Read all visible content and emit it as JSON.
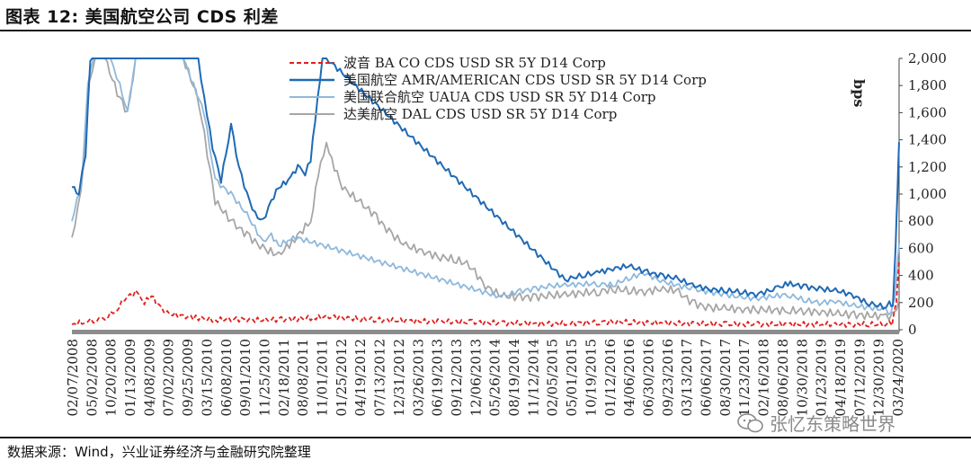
{
  "header": {
    "title": "图表 12:  美国航空公司 CDS 利差"
  },
  "footer": {
    "source": "数据来源：Wind，兴业证券经济与金融研究院整理"
  },
  "watermark": {
    "text": "张忆东策略世界"
  },
  "chart_data": {
    "type": "line",
    "title": "图表 12:  美国航空公司 CDS 利差",
    "ylabel": "bps",
    "ylim": [
      0,
      2000
    ],
    "yticks": [
      0,
      200,
      400,
      600,
      800,
      1000,
      1200,
      1400,
      1600,
      1800,
      2000
    ],
    "ytick_labels": [
      "0",
      "200",
      "400",
      "600",
      "800",
      "1,000",
      "1,200",
      "1,400",
      "1,600",
      "1,800",
      "2,000"
    ],
    "y_axis_position": "right",
    "legend_position": "top-center",
    "x_tick_labels": [
      "02/07/2008",
      "05/02/2008",
      "10/20/2008",
      "01/13/2009",
      "04/08/2009",
      "07/02/2009",
      "09/25/2009",
      "03/15/2010",
      "06/08/2010",
      "09/01/2010",
      "11/25/2010",
      "02/18/2011",
      "08/08/2011",
      "11/01/2011",
      "01/25/2012",
      "04/19/2012",
      "07/13/2012",
      "12/31/2012",
      "03/26/2013",
      "06/19/2013",
      "09/12/2013",
      "12/06/2013",
      "05/26/2014",
      "08/19/2014",
      "11/12/2014",
      "02/05/2015",
      "05/01/2015",
      "10/19/2015",
      "01/12/2016",
      "04/06/2016",
      "06/30/2016",
      "09/23/2016",
      "03/13/2017",
      "06/06/2017",
      "08/30/2017",
      "11/23/2017",
      "02/16/2018",
      "08/06/2018",
      "10/30/2018",
      "01/23/2019",
      "04/18/2019",
      "07/12/2019",
      "12/30/2019",
      "03/24/2020"
    ],
    "series": [
      {
        "name": "波音 BA CO CDS USD SR 5Y D14 Corp",
        "color": "#e0201e",
        "dash": "dashed",
        "x": [
          "2008-02-07",
          "2008-04-01",
          "2008-06-01",
          "2008-08-01",
          "2008-10-01",
          "2008-11-15",
          "2009-01-13",
          "2009-03-01",
          "2009-04-08",
          "2009-05-15",
          "2009-07-02",
          "2009-09-25",
          "2009-12-01",
          "2010-03-15",
          "2010-06-08",
          "2010-09-01",
          "2010-11-25",
          "2011-02-18",
          "2011-05-01",
          "2011-08-08",
          "2011-11-01",
          "2012-01-25",
          "2012-04-19",
          "2012-07-13",
          "2012-12-31",
          "2013-06-19",
          "2013-12-06",
          "2014-05-26",
          "2014-11-12",
          "2015-05-01",
          "2015-10-19",
          "2016-01-12",
          "2016-04-06",
          "2016-09-23",
          "2017-03-13",
          "2017-08-30",
          "2018-02-16",
          "2018-08-06",
          "2019-01-23",
          "2019-04-18",
          "2019-07-12",
          "2019-10-01",
          "2019-12-30",
          "2020-02-15",
          "2020-03-10",
          "2020-03-24"
        ],
        "y": [
          40,
          55,
          70,
          90,
          140,
          230,
          275,
          200,
          250,
          180,
          120,
          100,
          90,
          70,
          80,
          75,
          70,
          75,
          80,
          85,
          95,
          90,
          80,
          75,
          65,
          60,
          55,
          50,
          45,
          45,
          55,
          60,
          55,
          50,
          45,
          40,
          40,
          40,
          40,
          40,
          40,
          40,
          40,
          50,
          200,
          500
        ]
      },
      {
        "name": "美国航空 AMR/AMERICAN CDS USD SR 5Y D14 Corp",
        "color": "#1f6ab5",
        "dash": "solid",
        "x": [
          "2008-02-07",
          "2008-03-15",
          "2008-04-20",
          "2008-05-15",
          "2008-06-05",
          "2008-07-01",
          "2009-12-15",
          "2010-01-15",
          "2010-03-01",
          "2010-04-15",
          "2010-06-08",
          "2010-07-20",
          "2010-09-01",
          "2010-10-15",
          "2010-11-25",
          "2011-01-10",
          "2011-02-18",
          "2011-04-10",
          "2011-06-01",
          "2011-07-10",
          "2011-08-08",
          "2011-09-01",
          "2011-10-10",
          "2011-11-01",
          "2015-05-01",
          "2015-08-01",
          "2015-10-19",
          "2016-01-12",
          "2016-04-06",
          "2016-06-30",
          "2016-09-23",
          "2016-12-15",
          "2017-03-13",
          "2017-06-06",
          "2017-08-30",
          "2017-11-23",
          "2018-02-16",
          "2018-06-01",
          "2018-08-06",
          "2018-10-30",
          "2019-01-23",
          "2019-04-18",
          "2019-07-12",
          "2019-10-01",
          "2019-12-30",
          "2020-02-01",
          "2020-02-20",
          "2020-03-05",
          "2020-03-15",
          "2020-03-24"
        ],
        "y": [
          1050,
          1000,
          1300,
          2050,
          2000,
          2000,
          2000,
          1700,
          1350,
          1100,
          1500,
          1200,
          1000,
          850,
          800,
          950,
          1050,
          1100,
          1200,
          1150,
          1250,
          1550,
          2000,
          2000,
          370,
          400,
          420,
          450,
          470,
          430,
          400,
          380,
          330,
          300,
          290,
          280,
          260,
          300,
          340,
          320,
          300,
          290,
          260,
          200,
          170,
          190,
          160,
          600,
          1000,
          1400
        ]
      },
      {
        "name": "美国联合航空 UAUA CDS USD SR 5Y D14 Corp",
        "color": "#8fb8dc",
        "dash": "solid",
        "x": [
          "2008-02-07",
          "2008-04-01",
          "2008-05-02",
          "2008-06-01",
          "2008-07-15",
          "2008-09-01",
          "2008-10-20",
          "2008-12-01",
          "2009-01-13",
          "2009-04-08",
          "2009-07-02",
          "2009-09-25",
          "2010-01-15",
          "2010-03-15",
          "2010-06-08",
          "2010-09-01",
          "2010-11-25",
          "2011-01-10",
          "2011-02-18",
          "2011-04-10",
          "2011-05-20",
          "2014-05-26",
          "2014-08-19",
          "2014-11-12",
          "2015-02-05",
          "2015-05-01",
          "2015-10-19",
          "2016-01-12",
          "2016-04-06",
          "2016-06-30",
          "2016-09-23",
          "2017-03-13",
          "2017-06-06",
          "2017-08-30",
          "2017-11-23",
          "2018-02-16",
          "2018-08-06",
          "2018-10-30",
          "2019-01-23",
          "2019-04-18",
          "2019-07-12",
          "2019-12-30",
          "2020-02-10",
          "2020-03-01",
          "2020-03-24"
        ],
        "y": [
          800,
          1100,
          1800,
          2000,
          2000,
          2000,
          1800,
          1600,
          2000,
          2000,
          2000,
          2000,
          1600,
          1100,
          1000,
          850,
          650,
          700,
          620,
          660,
          680,
          240,
          280,
          300,
          320,
          330,
          340,
          330,
          380,
          420,
          360,
          300,
          280,
          260,
          240,
          230,
          260,
          220,
          200,
          210,
          180,
          150,
          120,
          250,
          650
        ]
      },
      {
        "name": "达美航空 DAL CDS USD SR 5Y D14 Corp",
        "color": "#a6a6a6",
        "dash": "solid",
        "x": [
          "2008-02-07",
          "2008-03-10",
          "2008-04-10",
          "2008-05-10",
          "2008-06-10",
          "2008-08-01",
          "2008-10-20",
          "2008-12-01",
          "2009-01-13",
          "2009-04-08",
          "2009-07-02",
          "2009-09-25",
          "2009-12-15",
          "2010-02-01",
          "2010-03-15",
          "2010-06-08",
          "2010-09-01",
          "2010-11-25",
          "2011-02-18",
          "2011-05-01",
          "2011-08-08",
          "2011-10-01",
          "2011-11-01",
          "2012-01-25",
          "2012-04-19",
          "2012-07-13",
          "2012-10-01",
          "2012-12-31",
          "2013-03-26",
          "2013-06-19",
          "2013-09-12",
          "2013-12-06",
          "2014-03-01",
          "2014-05-26",
          "2014-08-19",
          "2014-11-12",
          "2015-02-05",
          "2015-05-01",
          "2015-10-19",
          "2016-01-12",
          "2016-04-06",
          "2016-06-30",
          "2016-09-23",
          "2016-12-15",
          "2017-03-13",
          "2017-06-06",
          "2017-08-30",
          "2017-11-23",
          "2018-02-16",
          "2018-08-06",
          "2018-10-30",
          "2019-01-23",
          "2019-04-18",
          "2019-07-12",
          "2019-12-30",
          "2020-02-15",
          "2020-03-24"
        ],
        "y": [
          680,
          900,
          1200,
          1800,
          2000,
          2000,
          1700,
          1600,
          2000,
          2000,
          2000,
          2000,
          1700,
          1300,
          950,
          800,
          700,
          600,
          550,
          650,
          800,
          1250,
          1350,
          1050,
          950,
          850,
          720,
          620,
          580,
          540,
          520,
          480,
          320,
          250,
          240,
          240,
          250,
          260,
          280,
          300,
          290,
          280,
          300,
          290,
          200,
          160,
          160,
          150,
          150,
          140,
          140,
          130,
          120,
          110,
          100,
          100,
          200
        ]
      }
    ]
  }
}
